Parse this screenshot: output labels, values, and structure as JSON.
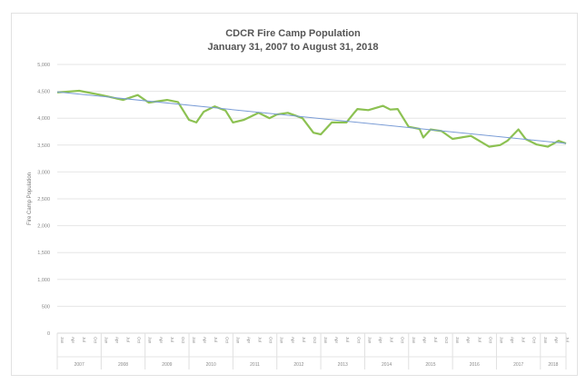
{
  "chart_data": {
    "type": "line",
    "title": "CDCR Fire Camp Population",
    "subtitle": "January 31, 2007 to August 31, 2018",
    "xlabel": "",
    "ylabel": "Fire Camp Population",
    "ylim": [
      0,
      5000
    ],
    "yticks": [
      "0",
      "500",
      "1,000",
      "1,500",
      "2,000",
      "2,500",
      "3,000",
      "3,500",
      "4,000",
      "4,500",
      "5,000"
    ],
    "ytick_values": [
      0,
      500,
      1000,
      1500,
      2000,
      2500,
      3000,
      3500,
      4000,
      4500,
      5000
    ],
    "month_labels": [
      "Jan",
      "Apr",
      "Jul",
      "Oct"
    ],
    "years": [
      "2007",
      "2008",
      "2009",
      "2010",
      "2011",
      "2012",
      "2013",
      "2014",
      "2015",
      "2016",
      "2017",
      "2018"
    ],
    "grid": true,
    "legend": "none",
    "colors": {
      "series": "#8cc152",
      "trend": "#7a9cd6",
      "grid": "#e6e6e6"
    },
    "series": [
      {
        "x": [
          "2007-01",
          "2007-07",
          "2008-01",
          "2008-07",
          "2008-11",
          "2009-02",
          "2009-07",
          "2009-10",
          "2010-01",
          "2010-03",
          "2010-05",
          "2010-08",
          "2010-11",
          "2011-01",
          "2011-04",
          "2011-08",
          "2011-11",
          "2012-01",
          "2012-04",
          "2012-06",
          "2012-08",
          "2012-11",
          "2013-01",
          "2013-04",
          "2013-08",
          "2013-10",
          "2013-11",
          "2014-02",
          "2014-06",
          "2014-08",
          "2014-10",
          "2015-01",
          "2015-04",
          "2015-05",
          "2015-07",
          "2015-10",
          "2016-01",
          "2016-06",
          "2016-11",
          "2017-02",
          "2017-04",
          "2017-07",
          "2017-09",
          "2017-12",
          "2018-03",
          "2018-06",
          "2018-08"
        ],
        "values": [
          4480,
          4510,
          4430,
          4340,
          4430,
          4290,
          4340,
          4300,
          3970,
          3920,
          4120,
          4220,
          4140,
          3920,
          3970,
          4100,
          4000,
          4070,
          4100,
          4050,
          4000,
          3730,
          3700,
          3920,
          3920,
          4090,
          4170,
          4150,
          4230,
          4160,
          4170,
          3840,
          3800,
          3640,
          3790,
          3760,
          3615,
          3670,
          3470,
          3500,
          3580,
          3790,
          3610,
          3510,
          3470,
          3580,
          3530
        ]
      }
    ],
    "trendline": {
      "type": "linear",
      "start": [
        "2007-01",
        4490
      ],
      "end": [
        "2018-08",
        3530
      ]
    }
  }
}
